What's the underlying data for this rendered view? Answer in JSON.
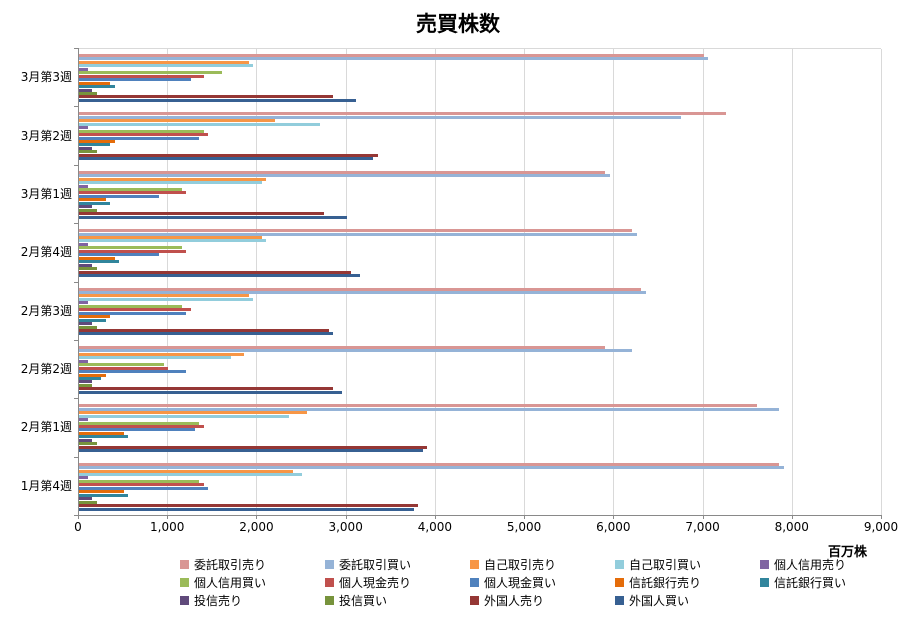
{
  "title": "売買株数",
  "unit_label": "百万株",
  "chart_data": {
    "type": "bar",
    "orientation": "horizontal",
    "title": "売買株数",
    "xlabel": "百万株",
    "ylabel": "",
    "xlim": [
      0,
      9000
    ],
    "grid": true,
    "legend_position": "bottom",
    "x_ticks": [
      0,
      1000,
      2000,
      3000,
      4000,
      5000,
      6000,
      7000,
      8000,
      9000
    ],
    "x_tick_labels": [
      "0",
      "1,000",
      "2,000",
      "3,000",
      "4,000",
      "5,000",
      "6,000",
      "7,000",
      "8,000",
      "9,000"
    ],
    "categories": [
      "3月第3週",
      "3月第2週",
      "3月第1週",
      "2月第4週",
      "2月第3週",
      "2月第2週",
      "2月第1週",
      "1月第4週"
    ],
    "series": [
      {
        "name": "委託取引売り",
        "color": "#d99694",
        "values": [
          7000,
          7250,
          5900,
          6200,
          6300,
          5900,
          7600,
          7850
        ]
      },
      {
        "name": "委託取引買い",
        "color": "#95b3d7",
        "values": [
          7050,
          6750,
          5950,
          6250,
          6350,
          6200,
          7850,
          7900
        ]
      },
      {
        "name": "自己取引売り",
        "color": "#f79646",
        "values": [
          1900,
          2200,
          2100,
          2050,
          1900,
          1850,
          2550,
          2400
        ]
      },
      {
        "name": "自己取引買い",
        "color": "#92cddc",
        "values": [
          1950,
          2700,
          2050,
          2100,
          1950,
          1700,
          2350,
          2500
        ]
      },
      {
        "name": "個人信用売り",
        "color": "#8064a2",
        "values": [
          100,
          100,
          100,
          100,
          100,
          100,
          100,
          100
        ]
      },
      {
        "name": "個人信用買い",
        "color": "#9bbb59",
        "values": [
          1600,
          1400,
          1150,
          1150,
          1150,
          950,
          1350,
          1350
        ]
      },
      {
        "name": "個人現金売り",
        "color": "#c0504d",
        "values": [
          1400,
          1450,
          1200,
          1200,
          1250,
          1000,
          1400,
          1400
        ]
      },
      {
        "name": "個人現金買い",
        "color": "#4f81bd",
        "values": [
          1250,
          1350,
          900,
          900,
          1200,
          1200,
          1300,
          1450
        ]
      },
      {
        "name": "信託銀行売り",
        "color": "#e46c0a",
        "values": [
          350,
          400,
          300,
          400,
          350,
          300,
          500,
          500
        ]
      },
      {
        "name": "信託銀行買い",
        "color": "#31859c",
        "values": [
          400,
          350,
          350,
          450,
          300,
          250,
          550,
          550
        ]
      },
      {
        "name": "投信売り",
        "color": "#604a7b",
        "values": [
          150,
          150,
          150,
          150,
          150,
          150,
          150,
          150
        ]
      },
      {
        "name": "投信買い",
        "color": "#77933c",
        "values": [
          200,
          200,
          200,
          200,
          200,
          150,
          200,
          200
        ]
      },
      {
        "name": "外国人売り",
        "color": "#953735",
        "values": [
          2850,
          3350,
          2750,
          3050,
          2800,
          2850,
          3900,
          3800
        ]
      },
      {
        "name": "外国人買い",
        "color": "#376092",
        "values": [
          3100,
          3300,
          3000,
          3150,
          2850,
          2950,
          3850,
          3750
        ]
      }
    ]
  }
}
